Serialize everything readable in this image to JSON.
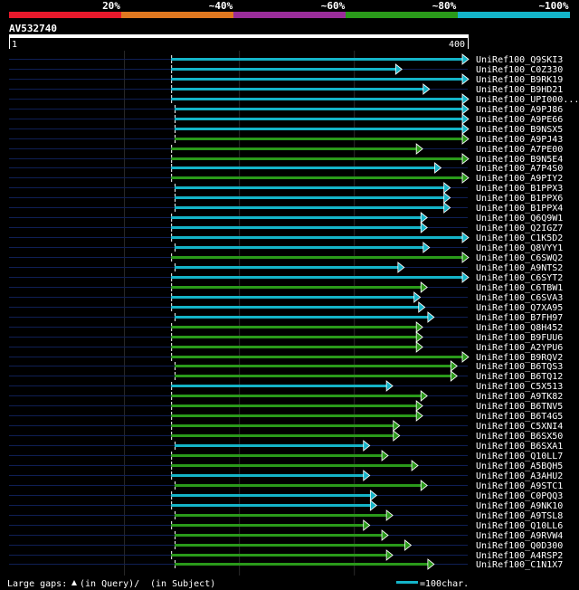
{
  "identity_legend": {
    "labels": [
      "20%",
      "~40%",
      "~60%",
      "~80%",
      "~100%"
    ],
    "colors": [
      "#e8192c",
      "#e07820",
      "#9a2d9a",
      "#2a9a1a",
      "#14b4c8"
    ]
  },
  "query": {
    "id": "AV532740",
    "start_label": "1",
    "end_label": "400",
    "length": 400
  },
  "footer": {
    "gaps_label": "Large gaps:",
    "query_gap_label": "(in Query)/",
    "subject_gap_label": "(in Subject)",
    "scale_label": "=100char."
  },
  "chart_data": {
    "type": "bar",
    "xlim": [
      1,
      400
    ],
    "series": [
      {
        "hit": "UniRef100_Q9SKI3",
        "start": 142,
        "end": 400,
        "color": "#14b4c8"
      },
      {
        "hit": "UniRef100_C0Z330",
        "start": 142,
        "end": 342,
        "color": "#14b4c8"
      },
      {
        "hit": "UniRef100_B9RK19",
        "start": 142,
        "end": 400,
        "color": "#14b4c8"
      },
      {
        "hit": "UniRef100_B9HD21",
        "start": 142,
        "end": 366,
        "color": "#14b4c8"
      },
      {
        "hit": "UniRef100_UPI000...",
        "start": 142,
        "end": 400,
        "color": "#14b4c8"
      },
      {
        "hit": "UniRef100_A9PJ86",
        "start": 145,
        "end": 400,
        "color": "#14b4c8"
      },
      {
        "hit": "UniRef100_A9PE66",
        "start": 145,
        "end": 400,
        "color": "#14b4c8"
      },
      {
        "hit": "UniRef100_B9NSX5",
        "start": 145,
        "end": 400,
        "color": "#14b4c8"
      },
      {
        "hit": "UniRef100_A9PJ43",
        "start": 145,
        "end": 400,
        "color": "#2a9a1a"
      },
      {
        "hit": "UniRef100_A7PE00",
        "start": 142,
        "end": 360,
        "color": "#2a9a1a"
      },
      {
        "hit": "UniRef100_B9N5E4",
        "start": 142,
        "end": 400,
        "color": "#2a9a1a"
      },
      {
        "hit": "UniRef100_A7P4S0",
        "start": 142,
        "end": 376,
        "color": "#14b4c8"
      },
      {
        "hit": "UniRef100_A9PIY2",
        "start": 142,
        "end": 400,
        "color": "#2a9a1a"
      },
      {
        "hit": "UniRef100_B1PPX3",
        "start": 145,
        "end": 384,
        "color": "#14b4c8"
      },
      {
        "hit": "UniRef100_B1PPX6",
        "start": 145,
        "end": 384,
        "color": "#14b4c8"
      },
      {
        "hit": "UniRef100_B1PPX4",
        "start": 145,
        "end": 384,
        "color": "#14b4c8"
      },
      {
        "hit": "UniRef100_Q6Q9W1",
        "start": 142,
        "end": 364,
        "color": "#14b4c8"
      },
      {
        "hit": "UniRef100_Q2IGZ7",
        "start": 142,
        "end": 364,
        "color": "#14b4c8"
      },
      {
        "hit": "UniRef100_C1K5D2",
        "start": 142,
        "end": 400,
        "color": "#14b4c8"
      },
      {
        "hit": "UniRef100_Q8VYY1",
        "start": 145,
        "end": 366,
        "color": "#14b4c8"
      },
      {
        "hit": "UniRef100_C6SWQ2",
        "start": 142,
        "end": 400,
        "color": "#2a9a1a"
      },
      {
        "hit": "UniRef100_A9NTS2",
        "start": 145,
        "end": 344,
        "color": "#14b4c8"
      },
      {
        "hit": "UniRef100_C6SYT2",
        "start": 142,
        "end": 400,
        "color": "#14b4c8"
      },
      {
        "hit": "UniRef100_C6TBW1",
        "start": 142,
        "end": 364,
        "color": "#2a9a1a"
      },
      {
        "hit": "UniRef100_C6SVA3",
        "start": 142,
        "end": 358,
        "color": "#14b4c8"
      },
      {
        "hit": "UniRef100_Q7XA95",
        "start": 142,
        "end": 362,
        "color": "#14b4c8"
      },
      {
        "hit": "UniRef100_B7FH97",
        "start": 145,
        "end": 370,
        "color": "#14b4c8"
      },
      {
        "hit": "UniRef100_Q8H452",
        "start": 142,
        "end": 360,
        "color": "#2a9a1a"
      },
      {
        "hit": "UniRef100_B9FUU6",
        "start": 142,
        "end": 360,
        "color": "#2a9a1a"
      },
      {
        "hit": "UniRef100_A2YPU6",
        "start": 142,
        "end": 360,
        "color": "#2a9a1a"
      },
      {
        "hit": "UniRef100_B9RQV2",
        "start": 142,
        "end": 400,
        "color": "#2a9a1a"
      },
      {
        "hit": "UniRef100_B6TQS3",
        "start": 145,
        "end": 390,
        "color": "#2a9a1a"
      },
      {
        "hit": "UniRef100_B6TQ12",
        "start": 145,
        "end": 390,
        "color": "#2a9a1a"
      },
      {
        "hit": "UniRef100_C5X513",
        "start": 142,
        "end": 334,
        "color": "#14b4c8"
      },
      {
        "hit": "UniRef100_A9TK82",
        "start": 142,
        "end": 364,
        "color": "#2a9a1a"
      },
      {
        "hit": "UniRef100_B6TNV5",
        "start": 142,
        "end": 360,
        "color": "#2a9a1a"
      },
      {
        "hit": "UniRef100_B6T4G5",
        "start": 142,
        "end": 360,
        "color": "#2a9a1a"
      },
      {
        "hit": "UniRef100_C5XNI4",
        "start": 142,
        "end": 340,
        "color": "#2a9a1a"
      },
      {
        "hit": "UniRef100_B6SX50",
        "start": 142,
        "end": 340,
        "color": "#2a9a1a"
      },
      {
        "hit": "UniRef100_B6SXA1",
        "start": 145,
        "end": 314,
        "color": "#14b4c8"
      },
      {
        "hit": "UniRef100_Q10LL7",
        "start": 142,
        "end": 330,
        "color": "#2a9a1a"
      },
      {
        "hit": "UniRef100_A5BQH5",
        "start": 142,
        "end": 356,
        "color": "#2a9a1a"
      },
      {
        "hit": "UniRef100_A3AHU2",
        "start": 142,
        "end": 314,
        "color": "#14b4c8"
      },
      {
        "hit": "UniRef100_A9STC1",
        "start": 145,
        "end": 364,
        "color": "#2a9a1a"
      },
      {
        "hit": "UniRef100_C0PQQ3",
        "start": 142,
        "end": 320,
        "color": "#14b4c8"
      },
      {
        "hit": "UniRef100_A9NK10",
        "start": 142,
        "end": 320,
        "color": "#14b4c8"
      },
      {
        "hit": "UniRef100_A9TSL8",
        "start": 145,
        "end": 334,
        "color": "#2a9a1a"
      },
      {
        "hit": "UniRef100_Q10LL6",
        "start": 142,
        "end": 314,
        "color": "#2a9a1a"
      },
      {
        "hit": "UniRef100_A9RVW4",
        "start": 145,
        "end": 330,
        "color": "#2a9a1a"
      },
      {
        "hit": "UniRef100_Q0D300",
        "start": 145,
        "end": 350,
        "color": "#2a9a1a"
      },
      {
        "hit": "UniRef100_A4RSP2",
        "start": 142,
        "end": 334,
        "color": "#2a9a1a"
      },
      {
        "hit": "UniRef100_C1N1X7",
        "start": 145,
        "end": 370,
        "color": "#2a9a1a"
      }
    ]
  }
}
